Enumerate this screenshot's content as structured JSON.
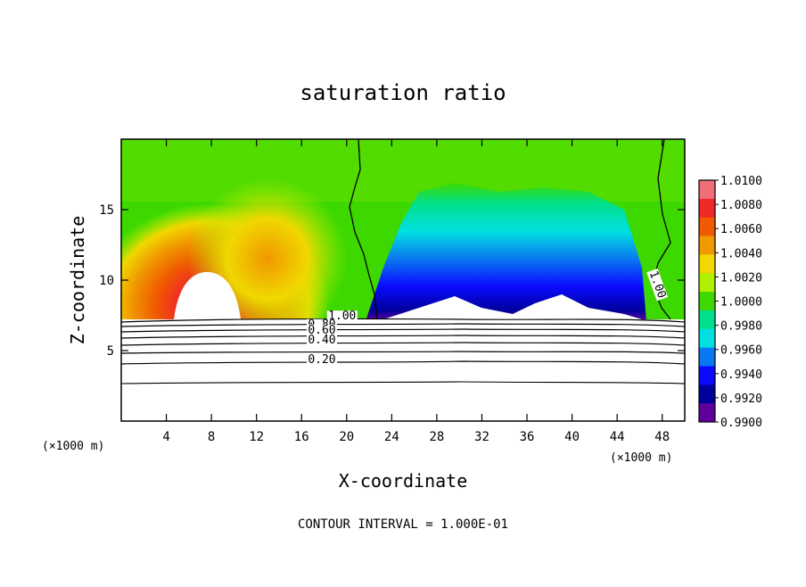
{
  "chart_data": {
    "type": "heatmap",
    "title": "saturation ratio",
    "xlabel": "X-coordinate",
    "ylabel": "Z-coordinate",
    "x_unit": "(×1000 m)",
    "x_unit_right": "(×1000 m)",
    "xlim": [
      0,
      50
    ],
    "ylim": [
      0,
      20
    ],
    "x_ticks": [
      4,
      8,
      12,
      16,
      20,
      24,
      28,
      32,
      36,
      40,
      44,
      48
    ],
    "y_ticks": [
      5,
      10,
      15
    ],
    "colorbar": {
      "levels": [
        "1.0100",
        "1.0080",
        "1.0060",
        "1.0040",
        "1.0020",
        "1.0000",
        "0.9980",
        "0.9960",
        "0.9940",
        "0.9920",
        "0.9900"
      ],
      "colors": [
        "#f06e78",
        "#f02828",
        "#f05a00",
        "#f09800",
        "#f0d800",
        "#b0f000",
        "#3cd800",
        "#00e08c",
        "#00e0e0",
        "#0a78f0",
        "#0a0aff",
        "#00009c",
        "#60009c"
      ]
    },
    "contour_labels": [
      {
        "text": "1.00",
        "x": 19.6,
        "z": 7.2
      },
      {
        "text": "0.80",
        "x": 17.8,
        "z": 6.6
      },
      {
        "text": "0.60",
        "x": 17.8,
        "z": 6.2
      },
      {
        "text": "0.40",
        "x": 17.8,
        "z": 5.5
      },
      {
        "text": "0.20",
        "x": 17.8,
        "z": 4.1
      },
      {
        "text": "1.00",
        "x": 47.3,
        "z": 9.6
      }
    ],
    "contour_interval_label": "CONTOUR INTERVAL = 1.000E-01"
  }
}
